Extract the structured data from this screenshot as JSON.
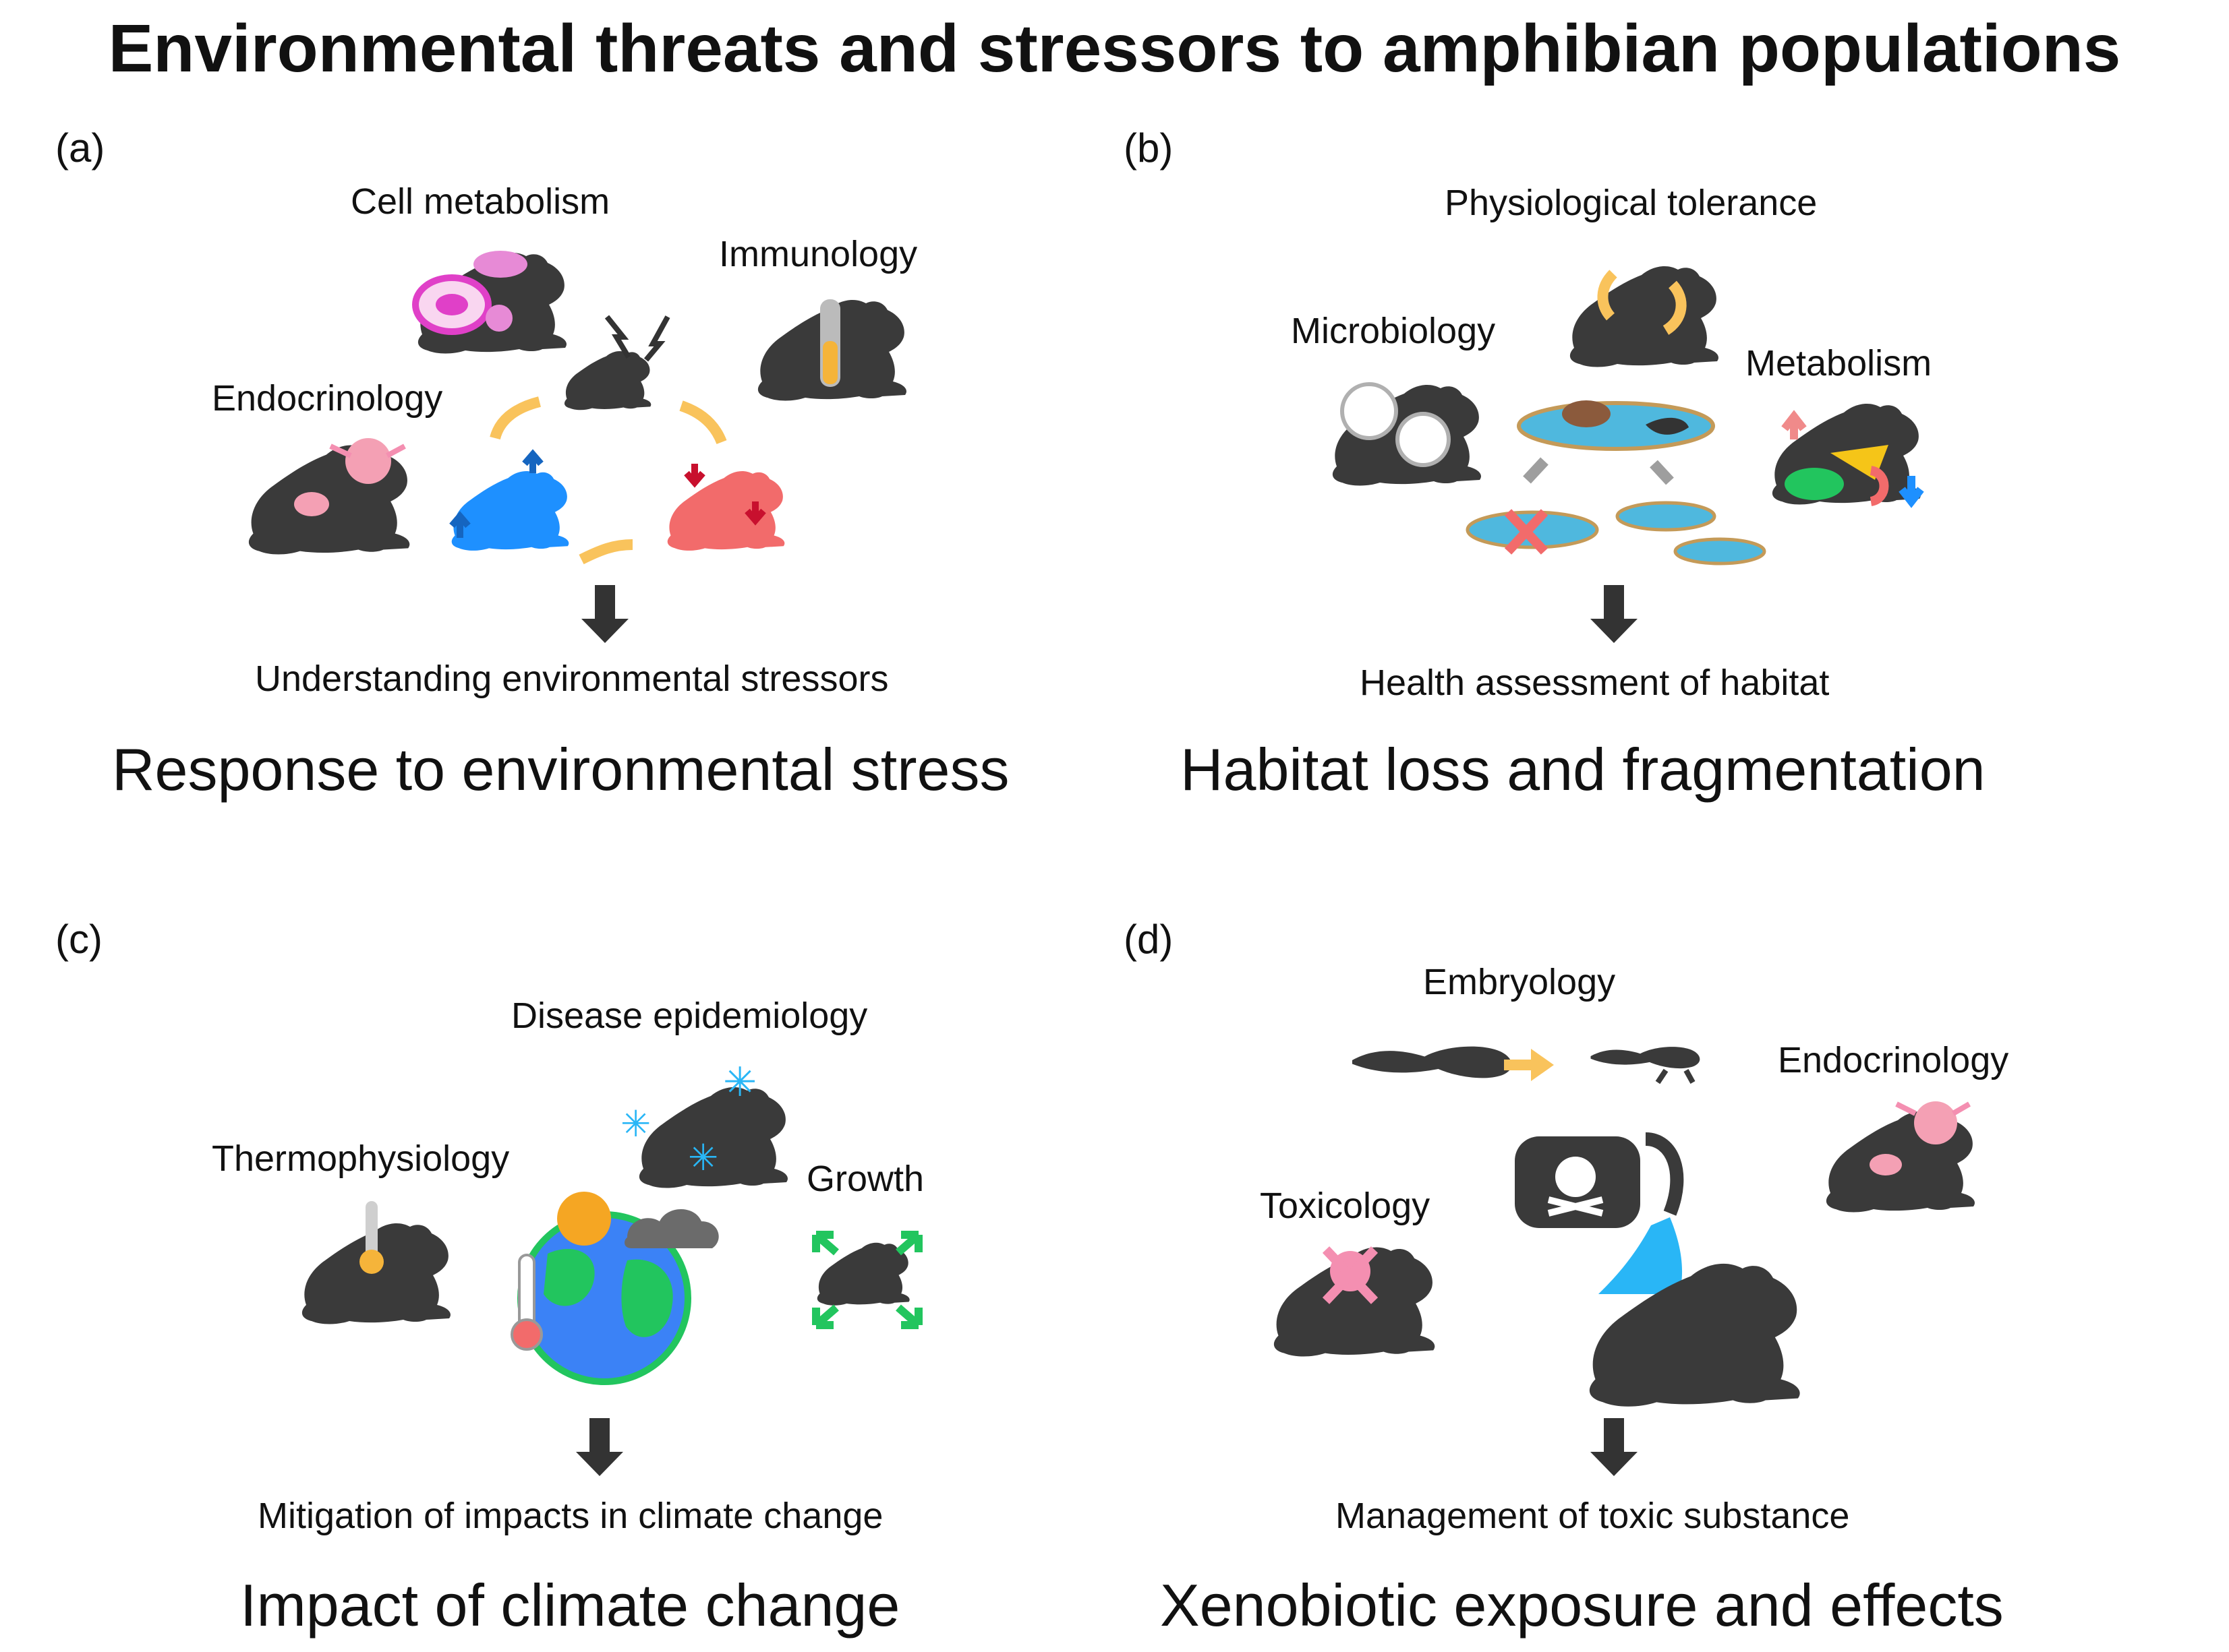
{
  "title": "Environmental threats and stressors to amphibian populations",
  "panels": [
    {
      "letter": "(a)",
      "labels": [
        "Cell metabolism",
        "Immunology",
        "Endocrinology"
      ],
      "outcome": "Understanding environmental stressors",
      "title": "Response to environmental stress"
    },
    {
      "letter": "(b)",
      "labels": [
        "Physiological tolerance",
        "Microbiology",
        "Metabolism"
      ],
      "outcome": "Health assessment of habitat",
      "title": "Habitat loss and fragmentation"
    },
    {
      "letter": "(c)",
      "labels": [
        "Disease epidemiology",
        "Thermophysiology",
        "Growth"
      ],
      "outcome": "Mitigation of impacts in climate change",
      "title": "Impact of climate change"
    },
    {
      "letter": "(d)",
      "labels": [
        "Embryology",
        "Endocrinology",
        "Toxicology"
      ],
      "outcome": "Management of toxic substance",
      "title": "Xenobiotic exposure and effects"
    }
  ],
  "colors": {
    "frog": "#3a3a3a",
    "arrow_orange": "#f9c35c",
    "stress_blue": "#1e90ff",
    "stress_red": "#f26b6b",
    "dark_red": "#c8102e",
    "water": "#4fb8de",
    "pink": "#f48fb1",
    "green": "#22c55e",
    "sun": "#f5a623"
  }
}
